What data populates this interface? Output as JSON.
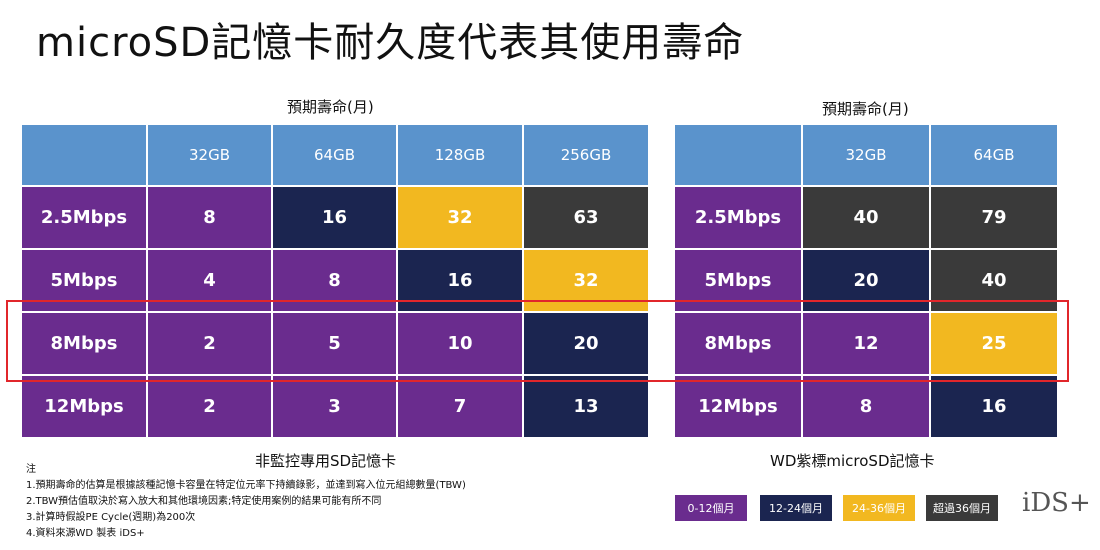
{
  "title": "microSD記憶卡耐久度代表其使用壽命",
  "left_table": {
    "header_caption": "預期壽命(月)",
    "columns": [
      "",
      "32GB",
      "64GB",
      "128GB",
      "256GB"
    ],
    "rows": [
      {
        "label": "2.5Mbps",
        "values": [
          "8",
          "16",
          "32",
          "63"
        ],
        "colors": [
          "purple",
          "navy",
          "yellow",
          "dark"
        ]
      },
      {
        "label": "5Mbps",
        "values": [
          "4",
          "8",
          "16",
          "32"
        ],
        "colors": [
          "purple",
          "purple",
          "navy",
          "yellow"
        ]
      },
      {
        "label": "8Mbps",
        "values": [
          "2",
          "5",
          "10",
          "20"
        ],
        "colors": [
          "purple",
          "purple",
          "purple",
          "navy"
        ]
      },
      {
        "label": "12Mbps",
        "values": [
          "2",
          "3",
          "7",
          "13"
        ],
        "colors": [
          "purple",
          "purple",
          "purple",
          "navy"
        ]
      }
    ],
    "footer_caption": "非監控專用SD記憶卡"
  },
  "right_table": {
    "header_caption": "預期壽命(月)",
    "columns": [
      "",
      "32GB",
      "64GB"
    ],
    "rows": [
      {
        "label": "2.5Mbps",
        "values": [
          "40",
          "79"
        ],
        "colors": [
          "dark",
          "dark"
        ]
      },
      {
        "label": "5Mbps",
        "values": [
          "20",
          "40"
        ],
        "colors": [
          "navy",
          "dark"
        ]
      },
      {
        "label": "8Mbps",
        "values": [
          "12",
          "25"
        ],
        "colors": [
          "purple",
          "yellow"
        ]
      },
      {
        "label": "12Mbps",
        "values": [
          "8",
          "16"
        ],
        "colors": [
          "purple",
          "navy"
        ]
      }
    ],
    "footer_caption": "WD紫標microSD記憶卡"
  },
  "notes": {
    "heading": "注",
    "lines": [
      "1.預期壽命的估算是根據該種記憶卡容量在特定位元率下持續錄影，並達到寫入位元組總數量(TBW)",
      "2.TBW預估值取決於寫入放大和其他環境因素;特定使用案例的結果可能有所不同",
      "3.計算時假設PE Cycle(週期)為200次",
      "4.資料來源WD 製表 iDS+"
    ]
  },
  "legend": [
    {
      "label": "0-12個月",
      "color": "#6a2c8e"
    },
    {
      "label": "12-24個月",
      "color": "#1b2550"
    },
    {
      "label": "24-36個月",
      "color": "#f2b820"
    },
    {
      "label": "超過36個月",
      "color": "#3a3a3a"
    }
  ],
  "logo_text": "iDS+",
  "colors": {
    "header_blue": "#5a93cc",
    "purple": "#6a2c8e",
    "navy": "#1b2550",
    "yellow": "#f2b820",
    "dark": "#3a3a3a",
    "highlight_red": "#e1262b"
  }
}
